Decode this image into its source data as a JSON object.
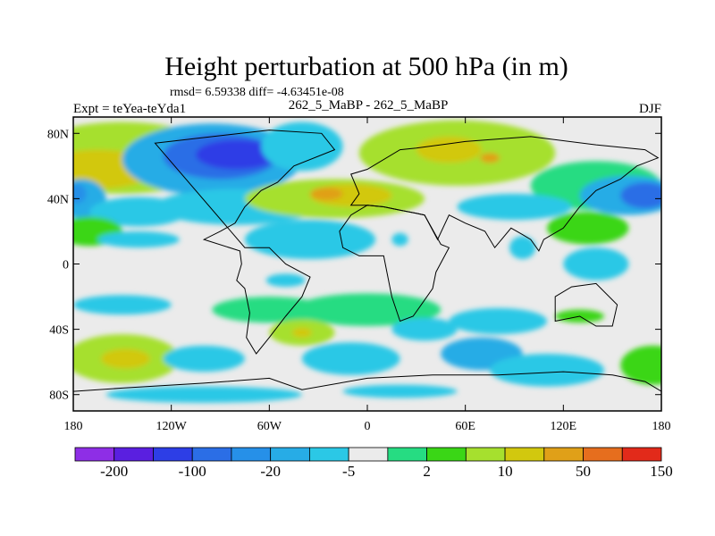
{
  "chart_data": {
    "type": "heatmap",
    "title": "Height perturbation at 500 hPa (in m)",
    "stats": "rmsd= 6.59338 diff= -4.63451e-08",
    "left_label": "Expt = teYea-teYda1",
    "center_label": "262_5_MaBP - 262_5_MaBP",
    "right_label": "DJF",
    "x_range": [
      -180,
      180
    ],
    "y_range": [
      -90,
      90
    ],
    "x_ticks": [
      {
        "value": -180,
        "label": "180"
      },
      {
        "value": -120,
        "label": "120W"
      },
      {
        "value": -60,
        "label": "60W"
      },
      {
        "value": 0,
        "label": "0"
      },
      {
        "value": 60,
        "label": "60E"
      },
      {
        "value": 120,
        "label": "120E"
      },
      {
        "value": 180,
        "label": "180"
      }
    ],
    "y_ticks": [
      {
        "value": 80,
        "label": "80N"
      },
      {
        "value": 40,
        "label": "40N"
      },
      {
        "value": 0,
        "label": "0"
      },
      {
        "value": -40,
        "label": "40S"
      },
      {
        "value": -80,
        "label": "80S"
      }
    ],
    "colorbar": {
      "colors": [
        "#8e2ee6",
        "#5a1fe0",
        "#2d3ee6",
        "#2b6ee6",
        "#2690e8",
        "#27ace6",
        "#2bc8e6",
        "#ebebeb",
        "#26dc82",
        "#3ad616",
        "#a6e02e",
        "#d2c80e",
        "#e0a018",
        "#e66e1e",
        "#e22a1a"
      ],
      "labels": [
        {
          "after_index": 0,
          "text": "-200"
        },
        {
          "after_index": 2,
          "text": "-100"
        },
        {
          "after_index": 4,
          "text": "-20"
        },
        {
          "after_index": 6,
          "text": "-5"
        },
        {
          "after_index": 8,
          "text": "2"
        },
        {
          "after_index": 10,
          "text": "10"
        },
        {
          "after_index": 12,
          "text": "50"
        },
        {
          "after_index": 14,
          "text": "150"
        }
      ]
    },
    "color_levels": {
      "neutral": 7
    },
    "field": [
      {
        "lon": -150,
        "lat": 65,
        "level": 10,
        "rlon": 60,
        "rlat": 22
      },
      {
        "lon": -165,
        "lat": 58,
        "level": 11,
        "rlon": 35,
        "rlat": 12
      },
      {
        "lon": -95,
        "lat": 64,
        "level": 5,
        "rlon": 55,
        "rlat": 22
      },
      {
        "lon": -90,
        "lat": 66,
        "level": 3,
        "rlon": 35,
        "rlat": 14
      },
      {
        "lon": -80,
        "lat": 67,
        "level": 2,
        "rlon": 25,
        "rlat": 9
      },
      {
        "lon": -40,
        "lat": 72,
        "level": 6,
        "rlon": 25,
        "rlat": 15
      },
      {
        "lon": -175,
        "lat": 40,
        "level": 5,
        "rlon": 15,
        "rlat": 12
      },
      {
        "lon": -140,
        "lat": 32,
        "level": 6,
        "rlon": 30,
        "rlat": 9
      },
      {
        "lon": -80,
        "lat": 35,
        "level": 6,
        "rlon": 50,
        "rlat": 11
      },
      {
        "lon": -20,
        "lat": 40,
        "level": 10,
        "rlon": 55,
        "rlat": 12
      },
      {
        "lon": -10,
        "lat": 42,
        "level": 11,
        "rlon": 25,
        "rlat": 7
      },
      {
        "lon": -25,
        "lat": 43,
        "level": 12,
        "rlon": 10,
        "rlat": 4
      },
      {
        "lon": 55,
        "lat": 68,
        "level": 10,
        "rlon": 60,
        "rlat": 20
      },
      {
        "lon": 50,
        "lat": 70,
        "level": 11,
        "rlon": 20,
        "rlat": 8
      },
      {
        "lon": 75,
        "lat": 65,
        "level": 12,
        "rlon": 6,
        "rlat": 3
      },
      {
        "lon": 140,
        "lat": 48,
        "level": 8,
        "rlon": 40,
        "rlat": 15
      },
      {
        "lon": 160,
        "lat": 42,
        "level": 5,
        "rlon": 30,
        "rlat": 12
      },
      {
        "lon": 170,
        "lat": 42,
        "level": 3,
        "rlon": 15,
        "rlat": 8
      },
      {
        "lon": -178,
        "lat": 43,
        "level": 4,
        "rlon": 6,
        "rlat": 6
      },
      {
        "lon": 90,
        "lat": 35,
        "level": 6,
        "rlon": 35,
        "rlat": 8
      },
      {
        "lon": 135,
        "lat": 22,
        "level": 9,
        "rlon": 25,
        "rlat": 10
      },
      {
        "lon": -170,
        "lat": 20,
        "level": 9,
        "rlon": 20,
        "rlat": 9
      },
      {
        "lon": -140,
        "lat": 15,
        "level": 6,
        "rlon": 25,
        "rlat": 5
      },
      {
        "lon": -35,
        "lat": 15,
        "level": 6,
        "rlon": 40,
        "rlat": 12
      },
      {
        "lon": 20,
        "lat": 15,
        "level": 6,
        "rlon": 5,
        "rlat": 4
      },
      {
        "lon": 95,
        "lat": 10,
        "level": 6,
        "rlon": 8,
        "rlat": 7
      },
      {
        "lon": 140,
        "lat": 0,
        "level": 6,
        "rlon": 20,
        "rlat": 10
      },
      {
        "lon": -50,
        "lat": -10,
        "level": 6,
        "rlon": 12,
        "rlat": 4
      },
      {
        "lon": -150,
        "lat": -25,
        "level": 6,
        "rlon": 30,
        "rlat": 6
      },
      {
        "lon": -60,
        "lat": -28,
        "level": 8,
        "rlon": 35,
        "rlat": 8
      },
      {
        "lon": 0,
        "lat": -28,
        "level": 8,
        "rlon": 45,
        "rlat": 10
      },
      {
        "lon": -40,
        "lat": -42,
        "level": 10,
        "rlon": 20,
        "rlat": 8
      },
      {
        "lon": -40,
        "lat": -42,
        "level": 11,
        "rlon": 6,
        "rlat": 3
      },
      {
        "lon": 130,
        "lat": -32,
        "level": 9,
        "rlon": 15,
        "rlat": 4
      },
      {
        "lon": 35,
        "lat": -40,
        "level": 6,
        "rlon": 20,
        "rlat": 7
      },
      {
        "lon": 80,
        "lat": -35,
        "level": 6,
        "rlon": 30,
        "rlat": 8
      },
      {
        "lon": -150,
        "lat": -58,
        "level": 10,
        "rlon": 35,
        "rlat": 15
      },
      {
        "lon": -148,
        "lat": -58,
        "level": 11,
        "rlon": 15,
        "rlat": 6
      },
      {
        "lon": -100,
        "lat": -58,
        "level": 6,
        "rlon": 25,
        "rlat": 8
      },
      {
        "lon": -10,
        "lat": -58,
        "level": 6,
        "rlon": 30,
        "rlat": 10
      },
      {
        "lon": 70,
        "lat": -55,
        "level": 5,
        "rlon": 25,
        "rlat": 10
      },
      {
        "lon": 110,
        "lat": -65,
        "level": 6,
        "rlon": 35,
        "rlat": 10
      },
      {
        "lon": 175,
        "lat": -62,
        "level": 9,
        "rlon": 20,
        "rlat": 12
      },
      {
        "lon": -100,
        "lat": -80,
        "level": 6,
        "rlon": 60,
        "rlat": 5
      },
      {
        "lon": 20,
        "lat": -78,
        "level": 6,
        "rlon": 35,
        "rlat": 4
      }
    ],
    "land_outline": [
      [
        [
          -130,
          74
        ],
        [
          -60,
          82
        ],
        [
          -28,
          80
        ],
        [
          -20,
          70
        ],
        [
          -45,
          60
        ],
        [
          -55,
          50
        ],
        [
          -65,
          45
        ],
        [
          -75,
          35
        ],
        [
          -81,
          25
        ],
        [
          -90,
          20
        ],
        [
          -100,
          15
        ],
        [
          -78,
          8
        ],
        [
          -77,
          0
        ],
        [
          -80,
          -10
        ],
        [
          -75,
          -15
        ],
        [
          -72,
          -30
        ],
        [
          -74,
          -45
        ],
        [
          -68,
          -55
        ],
        [
          -60,
          -45
        ],
        [
          -50,
          -32
        ],
        [
          -40,
          -20
        ],
        [
          -35,
          -8
        ],
        [
          -50,
          0
        ],
        [
          -60,
          10
        ],
        [
          -75,
          10
        ]
      ],
      [
        [
          -10,
          36
        ],
        [
          -5,
          43
        ],
        [
          -10,
          55
        ],
        [
          0,
          58
        ],
        [
          20,
          70
        ],
        [
          30,
          71
        ],
        [
          60,
          75
        ],
        [
          100,
          78
        ],
        [
          140,
          73
        ],
        [
          170,
          70
        ],
        [
          178,
          65
        ],
        [
          165,
          60
        ],
        [
          155,
          52
        ],
        [
          140,
          45
        ],
        [
          130,
          35
        ],
        [
          120,
          22
        ],
        [
          108,
          15
        ],
        [
          105,
          8
        ],
        [
          100,
          15
        ],
        [
          95,
          18
        ],
        [
          88,
          22
        ],
        [
          78,
          10
        ],
        [
          72,
          20
        ],
        [
          60,
          25
        ],
        [
          50,
          30
        ],
        [
          43,
          15
        ],
        [
          35,
          30
        ],
        [
          30,
          31
        ],
        [
          20,
          33
        ],
        [
          10,
          35
        ],
        [
          0,
          36
        ]
      ],
      [
        [
          -17,
          20
        ],
        [
          -15,
          10
        ],
        [
          -5,
          5
        ],
        [
          10,
          5
        ],
        [
          12,
          -5
        ],
        [
          15,
          -20
        ],
        [
          20,
          -35
        ],
        [
          28,
          -32
        ],
        [
          33,
          -25
        ],
        [
          40,
          -15
        ],
        [
          42,
          -5
        ],
        [
          50,
          10
        ],
        [
          45,
          12
        ],
        [
          35,
          30
        ],
        [
          30,
          31
        ],
        [
          20,
          33
        ],
        [
          10,
          35
        ],
        [
          0,
          36
        ],
        [
          -10,
          30
        ]
      ],
      [
        [
          115,
          -20
        ],
        [
          125,
          -14
        ],
        [
          140,
          -12
        ],
        [
          153,
          -25
        ],
        [
          150,
          -38
        ],
        [
          140,
          -38
        ],
        [
          130,
          -32
        ],
        [
          115,
          -35
        ]
      ],
      [
        [
          -180,
          -78
        ],
        [
          -150,
          -76
        ],
        [
          -100,
          -73
        ],
        [
          -60,
          -70
        ],
        [
          -40,
          -77
        ],
        [
          0,
          -70
        ],
        [
          40,
          -68
        ],
        [
          80,
          -68
        ],
        [
          120,
          -66
        ],
        [
          150,
          -68
        ],
        [
          170,
          -72
        ],
        [
          180,
          -78
        ],
        [
          180,
          -90
        ],
        [
          -180,
          -90
        ]
      ]
    ]
  }
}
